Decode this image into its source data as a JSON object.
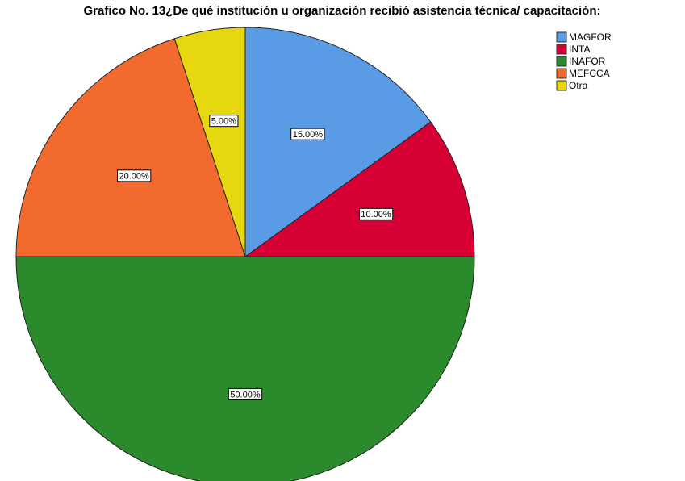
{
  "chart_data": {
    "type": "pie",
    "title": "Grafico No. 13¿De qué institución u organización recibió asistencia técnica/ capacitación:",
    "categories": [
      "MAGFOR",
      "INTA",
      "INAFOR",
      "MEFCCA",
      "Otra"
    ],
    "values": [
      15,
      10,
      50,
      20,
      5
    ],
    "value_labels": [
      "15.00%",
      "10.00%",
      "50.00%",
      "20.00%",
      "5.00%"
    ],
    "colors": [
      "#5a9be6",
      "#d60034",
      "#2a8a2c",
      "#f26a2e",
      "#e6d70e"
    ],
    "legend": "top-right"
  }
}
